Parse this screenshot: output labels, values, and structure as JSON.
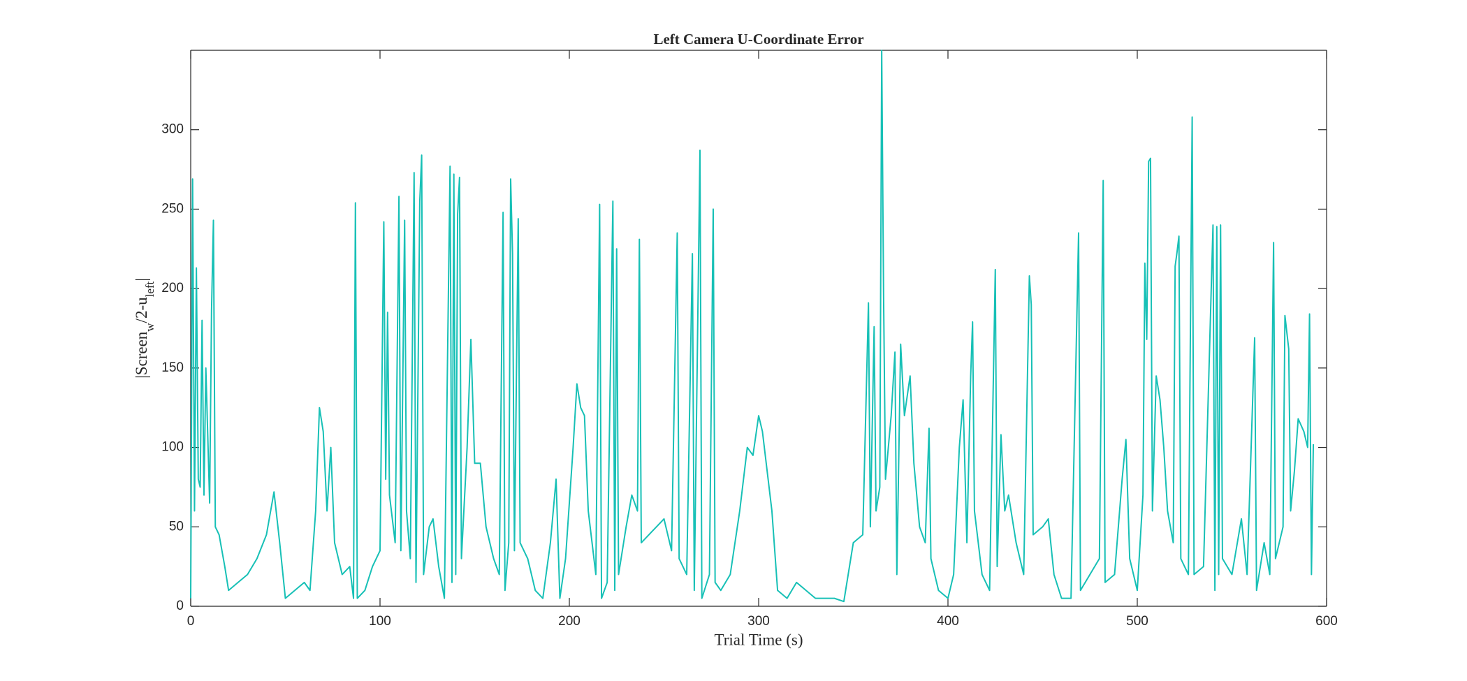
{
  "chart_data": {
    "type": "line",
    "title": "Left Camera U-Coordinate Error",
    "xlabel": "Trial Time (s)",
    "ylabel": [
      "|Screen",
      "w",
      "/2-u",
      "left",
      "|"
    ],
    "color": "#17c0b6",
    "xlim": [
      0,
      600
    ],
    "ylim": [
      0,
      350
    ],
    "xticks": [
      0,
      100,
      200,
      300,
      400,
      500,
      600
    ],
    "yticks": [
      0,
      50,
      100,
      150,
      200,
      250,
      300
    ],
    "grid": false,
    "x": [
      0,
      1,
      2,
      3,
      4,
      5,
      6,
      7,
      8,
      10,
      11,
      12,
      13,
      15,
      18,
      20,
      25,
      30,
      35,
      40,
      44,
      47,
      50,
      55,
      60,
      63,
      66,
      68,
      70,
      72,
      74,
      76,
      80,
      84,
      86,
      87,
      88,
      92,
      96,
      100,
      102,
      103,
      104,
      105,
      108,
      110,
      111,
      113,
      114,
      116,
      118,
      119,
      121,
      122,
      123,
      126,
      128,
      131,
      134,
      137,
      138,
      139,
      140,
      141,
      142,
      143,
      146,
      148,
      150,
      153,
      156,
      160,
      163,
      165,
      166,
      168,
      169,
      170,
      171,
      173,
      174,
      178,
      182,
      186,
      190,
      193,
      195,
      198,
      202,
      204,
      206,
      208,
      210,
      214,
      216,
      217,
      220,
      223,
      224,
      225,
      226,
      230,
      233,
      236,
      237,
      238,
      242,
      246,
      250,
      254,
      257,
      258,
      262,
      265,
      266,
      269,
      270,
      274,
      276,
      277,
      280,
      285,
      290,
      294,
      297,
      300,
      302,
      305,
      307,
      310,
      315,
      320,
      325,
      330,
      340,
      345,
      350,
      355,
      358,
      359,
      361,
      362,
      364,
      365,
      366,
      367,
      370,
      372,
      373,
      375,
      377,
      380,
      382,
      385,
      388,
      390,
      391,
      395,
      400,
      403,
      406,
      408,
      410,
      412,
      413,
      414,
      418,
      422,
      425,
      426,
      428,
      430,
      432,
      436,
      440,
      443,
      444,
      445,
      450,
      453,
      456,
      460,
      465,
      469,
      470,
      475,
      480,
      482,
      483,
      488,
      492,
      494,
      496,
      500,
      503,
      504,
      505,
      506,
      507,
      508,
      510,
      512,
      514,
      516,
      519,
      520,
      521,
      522,
      523,
      527,
      529,
      530,
      535,
      540,
      541,
      542,
      543,
      544,
      545,
      550,
      555,
      558,
      562,
      563,
      567,
      570,
      572,
      573,
      577,
      578,
      580,
      581,
      583,
      585,
      588,
      590,
      591,
      592,
      593
    ],
    "values": [
      5,
      269,
      60,
      213,
      80,
      75,
      180,
      70,
      150,
      65,
      186,
      243,
      50,
      45,
      25,
      10,
      15,
      20,
      30,
      45,
      72,
      40,
      5,
      10,
      15,
      10,
      60,
      125,
      110,
      60,
      100,
      40,
      20,
      25,
      5,
      254,
      5,
      10,
      25,
      35,
      242,
      80,
      185,
      70,
      40,
      258,
      35,
      243,
      60,
      30,
      273,
      15,
      255,
      284,
      20,
      50,
      55,
      25,
      5,
      277,
      15,
      272,
      20,
      247,
      270,
      30,
      100,
      168,
      90,
      90,
      50,
      30,
      20,
      248,
      10,
      40,
      269,
      222,
      35,
      244,
      40,
      30,
      10,
      5,
      40,
      80,
      5,
      30,
      100,
      140,
      125,
      120,
      60,
      20,
      253,
      5,
      15,
      255,
      10,
      225,
      20,
      50,
      70,
      60,
      231,
      40,
      45,
      50,
      55,
      35,
      235,
      30,
      20,
      222,
      10,
      287,
      5,
      20,
      250,
      15,
      10,
      20,
      60,
      100,
      95,
      120,
      110,
      80,
      60,
      10,
      5,
      15,
      10,
      5,
      5,
      3,
      40,
      45,
      191,
      50,
      176,
      60,
      75,
      350,
      195,
      80,
      120,
      160,
      20,
      165,
      120,
      145,
      90,
      50,
      40,
      112,
      30,
      10,
      5,
      20,
      100,
      130,
      40,
      145,
      179,
      60,
      20,
      10,
      212,
      25,
      108,
      60,
      70,
      40,
      20,
      208,
      190,
      45,
      50,
      55,
      20,
      5,
      5,
      235,
      10,
      20,
      30,
      268,
      15,
      20,
      80,
      105,
      30,
      10,
      70,
      216,
      168,
      280,
      282,
      60,
      145,
      130,
      100,
      60,
      40,
      214,
      223,
      233,
      30,
      20,
      308,
      20,
      25,
      240,
      10,
      239,
      20,
      240,
      30,
      20,
      55,
      20,
      169,
      10,
      40,
      20,
      229,
      30,
      50,
      183,
      162,
      60,
      85,
      118,
      110,
      100,
      184,
      20,
      102
    ]
  }
}
